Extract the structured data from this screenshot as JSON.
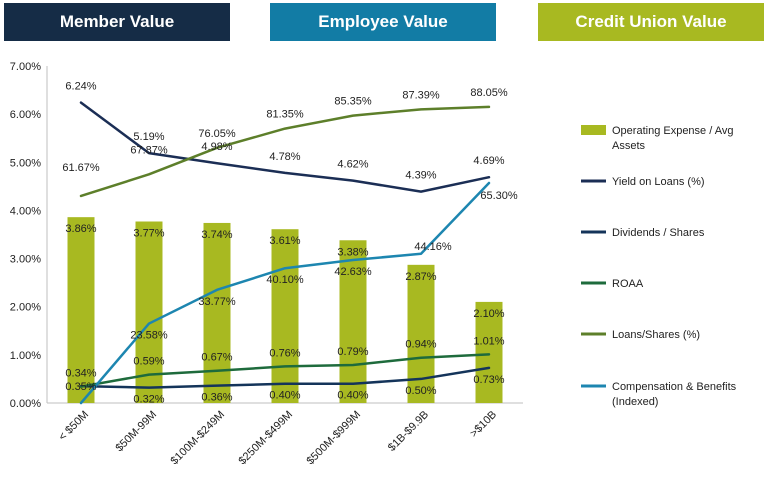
{
  "banners": [
    {
      "label": "Member Value",
      "color": "#152c46"
    },
    {
      "label": "Employee Value",
      "color": "#127ca5"
    },
    {
      "label": "Credit Union Value",
      "color": "#a8b921"
    }
  ],
  "chart_data": {
    "type": "bar",
    "categories": [
      "< $50M",
      "$50M-99M",
      "$100M-$249M",
      "$250M-$499M",
      "$500M-$999M",
      "$1B-$9.9B",
      ">$10B"
    ],
    "ylim": [
      0,
      7
    ],
    "yticks": [
      "0.00%",
      "1.00%",
      "2.00%",
      "3.00%",
      "4.00%",
      "5.00%",
      "6.00%",
      "7.00%"
    ],
    "grid": false,
    "legend_position": "right",
    "series": [
      {
        "name": "Operating Expense / Avg Assets",
        "kind": "bar",
        "color": "#a8b921",
        "values": [
          3.86,
          3.77,
          3.74,
          3.61,
          3.38,
          2.87,
          2.1
        ],
        "labels": [
          "3.86%",
          "3.77%",
          "3.74%",
          "3.61%",
          "3.38%",
          "2.87%",
          "2.10%"
        ]
      },
      {
        "name": "Yield on Loans (%)",
        "kind": "line",
        "color": "#1b2e55",
        "values": [
          6.24,
          5.19,
          4.98,
          4.78,
          4.62,
          4.39,
          4.69
        ],
        "labels": [
          "6.24%",
          "5.19%",
          "4.98%",
          "4.78%",
          "4.62%",
          "4.39%",
          "4.69%"
        ]
      },
      {
        "name": "Dividends / Shares",
        "kind": "line",
        "color": "#14345a",
        "values": [
          0.35,
          0.32,
          0.36,
          0.4,
          0.4,
          0.5,
          0.73
        ],
        "labels": [
          "0.35%",
          "0.32%",
          "0.36%",
          "0.40%",
          "0.40%",
          "0.50%",
          "0.73%"
        ]
      },
      {
        "name": "ROAA",
        "kind": "line",
        "color": "#1e6b3c",
        "values": [
          0.34,
          0.59,
          0.67,
          0.76,
          0.79,
          0.94,
          1.01
        ],
        "labels": [
          "0.34%",
          "0.59%",
          "0.67%",
          "0.76%",
          "0.79%",
          "0.94%",
          "1.01%"
        ]
      },
      {
        "name": "Loans/Shares (%)",
        "kind": "line",
        "color": "#5d7f2a",
        "values": [
          4.3,
          4.75,
          5.3,
          5.7,
          5.97,
          6.1,
          6.15
        ],
        "labels": [
          "61.67%",
          "67.87%",
          "76.05%",
          "81.35%",
          "85.35%",
          "87.39%",
          "88.05%"
        ]
      },
      {
        "name": "Compensation & Benefits (Indexed)",
        "kind": "line",
        "color": "#1d86b0",
        "values": [
          0.0,
          1.65,
          2.35,
          2.8,
          2.97,
          3.1,
          4.57
        ],
        "labels": [
          "",
          "23.58%",
          "33.77%",
          "40.10%",
          "42.63%",
          "44.16%",
          "65.30%"
        ]
      }
    ]
  }
}
